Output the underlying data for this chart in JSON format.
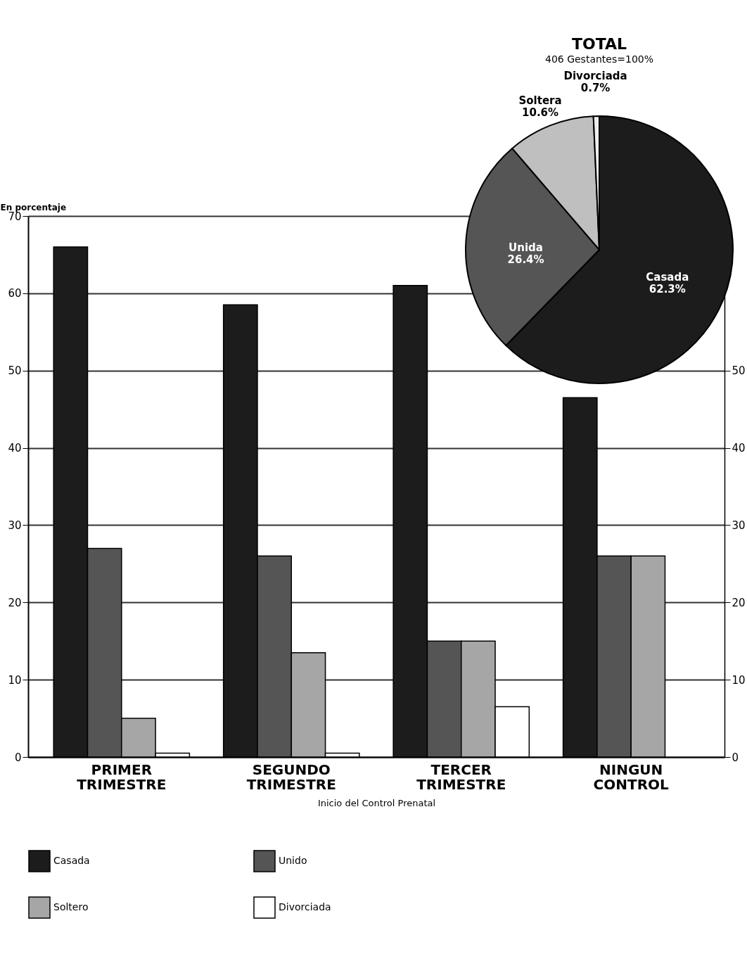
{
  "chart_data": [
    {
      "type": "bar",
      "ylabel": "En porcentaje",
      "xlabel": "Inicio del Control Prenatal",
      "categories": [
        "PRIMER\nTRIMESTRE",
        "SEGUNDO\nTRIMESTRE",
        "TERCER\nTRIMESTRE",
        "NINGUN\nCONTROL"
      ],
      "series": [
        {
          "name": "Casada",
          "color": "#1c1c1c",
          "values": [
            66,
            58.5,
            61,
            46.5
          ]
        },
        {
          "name": "Unido",
          "color": "#555555",
          "values": [
            27,
            26,
            15,
            26
          ]
        },
        {
          "name": "Soltero",
          "color": "#a6a6a6",
          "values": [
            5,
            13.5,
            15,
            26
          ]
        },
        {
          "name": "Divorciada",
          "color": "#ffffff",
          "values": [
            0.5,
            0.5,
            6.5,
            null
          ]
        }
      ],
      "ylim": [
        0,
        70
      ],
      "yticks": [
        0,
        10,
        20,
        30,
        40,
        50,
        60,
        70
      ],
      "y2lim": [
        0,
        70
      ],
      "y2ticks": [
        0,
        10,
        20,
        30,
        40,
        50
      ],
      "grid": "y",
      "legend": "bottom"
    },
    {
      "type": "pie",
      "title": "TOTAL",
      "subtitle": "406 Gestantes=100%",
      "categories": [
        "Casada",
        "Unida",
        "Soltera",
        "Divorciada"
      ],
      "values": [
        62.3,
        26.4,
        10.6,
        0.7
      ],
      "colors": [
        "#1c1c1c",
        "#555555",
        "#bfbfbf",
        "#eeeeee"
      ],
      "value_labels": [
        "62.3%",
        "26.4%",
        "10.6%",
        "0.7%"
      ]
    }
  ]
}
